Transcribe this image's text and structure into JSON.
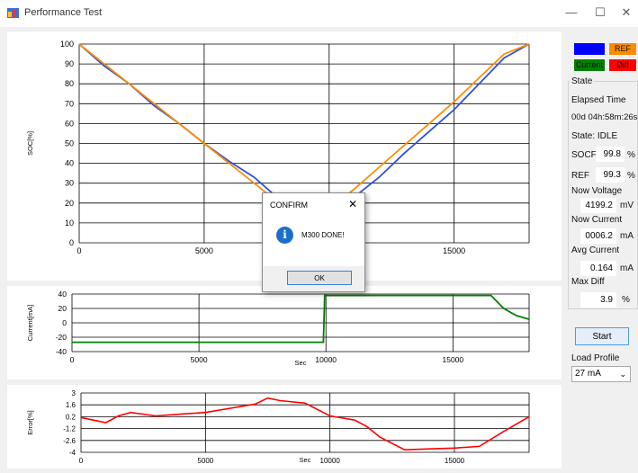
{
  "window": {
    "title": "Performance Test",
    "minimize": "—",
    "maximize": "☐",
    "close": "✕"
  },
  "legend": [
    {
      "label": "SOCF",
      "bg": "#0000ff",
      "fg": "#0000ff"
    },
    {
      "label": "REF",
      "bg": "#ff8c00",
      "fg": "#111111"
    },
    {
      "label": "Current",
      "bg": "#008000",
      "fg": "#111111"
    },
    {
      "label": "Diff",
      "bg": "#ff0000",
      "fg": "#111111"
    }
  ],
  "status": {
    "state_label": "State",
    "elapsed_label": "Elapsed Time",
    "elapsed_value": "00d 04h:58m:26s",
    "state_value": "State:  IDLE",
    "socf_label": "SOCF",
    "socf_value": "99.8",
    "socf_unit": "%",
    "ref_label": "REF",
    "ref_value": "99.3",
    "ref_unit": "%",
    "voltage_label": "Now Voltage",
    "voltage_value": "4199.2",
    "voltage_unit": "mV",
    "current_label": "Now Current",
    "current_value": "0006.2",
    "current_unit": "mA",
    "avg_label": "Avg Current",
    "avg_value": "0.164",
    "avg_unit": "mA",
    "maxdiff_label": "Max Diff",
    "maxdiff_value": "3.9",
    "maxdiff_unit": "%"
  },
  "controls": {
    "start": "Start",
    "load_profile_label": "Load Profile",
    "load_profile_value": "27 mA"
  },
  "dialog": {
    "title": "CONFIRM",
    "message": "M300 DONE!",
    "ok": "OK",
    "icon": "info-icon"
  },
  "chart_data": [
    {
      "type": "line",
      "ylabel": "SOC[%]",
      "xlabel": "",
      "xlim": [
        0,
        18000
      ],
      "ylim": [
        0,
        100
      ],
      "xticks": [
        0,
        5000,
        10000,
        15000
      ],
      "yticks": [
        0,
        10,
        20,
        30,
        40,
        50,
        60,
        70,
        80,
        90,
        100
      ],
      "series": [
        {
          "name": "SOCF",
          "color": "#3050e0",
          "x": [
            0,
            1000,
            2000,
            3000,
            4000,
            5000,
            6000,
            7000,
            8000,
            9000,
            10000,
            11000,
            12000,
            13000,
            14000,
            15000,
            16000,
            17000,
            18000
          ],
          "y": [
            100,
            89,
            80,
            69,
            60,
            50,
            41,
            33,
            22,
            14,
            15,
            23,
            33,
            45,
            56,
            67,
            80,
            93,
            100
          ]
        },
        {
          "name": "REF",
          "color": "#ff8c00",
          "x": [
            0,
            1000,
            2000,
            3000,
            4000,
            5000,
            6000,
            7000,
            8000,
            9000,
            10000,
            11000,
            12000,
            13000,
            14000,
            15000,
            16000,
            17000,
            18000
          ],
          "y": [
            100,
            90,
            80,
            70,
            60,
            50,
            40,
            30,
            20,
            13,
            17,
            27,
            38,
            49,
            60,
            71,
            83,
            95,
            100
          ]
        }
      ]
    },
    {
      "type": "line",
      "ylabel": "Current[mA]",
      "xlabel": "Sec",
      "xlim": [
        0,
        18000
      ],
      "ylim": [
        -40,
        40
      ],
      "xticks": [
        0,
        5000,
        10000,
        15000
      ],
      "yticks": [
        -40,
        -20,
        0,
        20,
        40
      ],
      "series": [
        {
          "name": "Current",
          "color": "#008000",
          "x": [
            0,
            9900,
            9950,
            16500,
            17000,
            17500,
            18000
          ],
          "y": [
            -27,
            -27,
            38,
            38,
            20,
            10,
            5
          ]
        }
      ]
    },
    {
      "type": "line",
      "ylabel": "Error[%]",
      "xlabel": "Sec",
      "xlim": [
        0,
        18000
      ],
      "ylim": [
        -4,
        3
      ],
      "xticks": [
        0,
        5000,
        10000,
        15000
      ],
      "yticks": [
        -4,
        -2.6,
        -1.2,
        0.2,
        1.6,
        3
      ],
      "ytick_labels": [
        "-4",
        "-2.6",
        "-1.2",
        "0.2",
        "1.6",
        "3"
      ],
      "series": [
        {
          "name": "Diff",
          "color": "#ff0000",
          "x": [
            0,
            500,
            1000,
            1500,
            2000,
            3000,
            4000,
            5000,
            6000,
            7000,
            7500,
            8000,
            9000,
            10000,
            11000,
            11500,
            12000,
            13000,
            14000,
            15000,
            16000,
            17000,
            18000
          ],
          "y": [
            0.1,
            -0.2,
            -0.5,
            0.3,
            0.7,
            0.3,
            0.5,
            0.7,
            1.2,
            1.7,
            2.4,
            2.1,
            1.8,
            0.3,
            -0.2,
            -1.0,
            -2.2,
            -3.7,
            -3.6,
            -3.5,
            -3.3,
            -1.5,
            0.2
          ]
        }
      ]
    }
  ]
}
